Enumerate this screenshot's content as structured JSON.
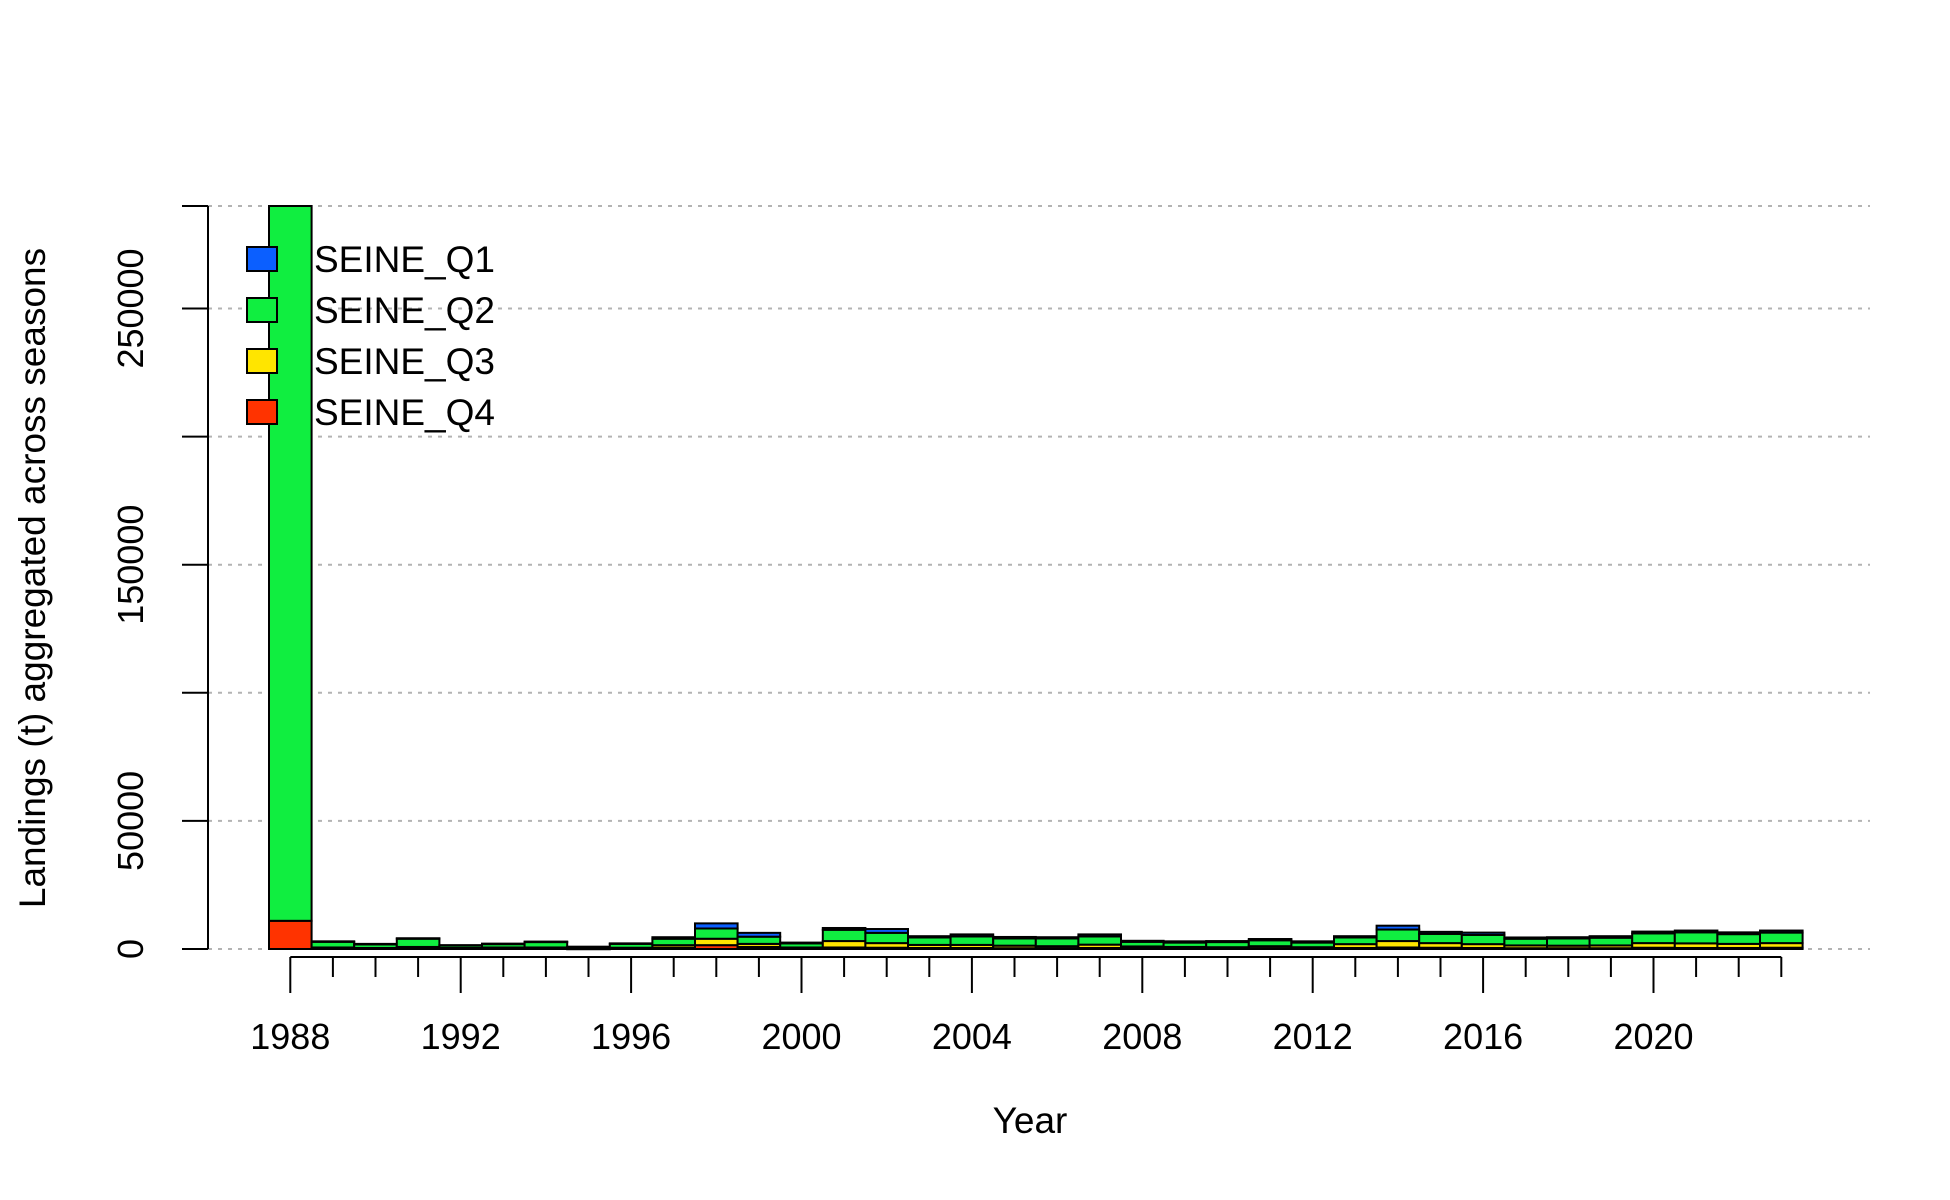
{
  "chart_data": {
    "type": "bar",
    "stacked": true,
    "title": "",
    "xlabel": "Year",
    "ylabel": "Landings (t) aggregated across seasons",
    "ylim": [
      0,
      290000
    ],
    "y_ticks": [
      0,
      50000,
      150000,
      250000
    ],
    "y_tick_marks": [
      0,
      50000,
      100000,
      150000,
      200000,
      250000,
      290000
    ],
    "x_tick_labels": [
      "1988",
      "1992",
      "1996",
      "2000",
      "2004",
      "2008",
      "2012",
      "2016",
      "2020"
    ],
    "grid": "horizontal dotted",
    "legend_position": "top-left",
    "categories": [
      "1988",
      "1989",
      "1990",
      "1991",
      "1992",
      "1993",
      "1994",
      "1995",
      "1996",
      "1997",
      "1998",
      "1999",
      "2000",
      "2001",
      "2002",
      "2003",
      "2004",
      "2005",
      "2006",
      "2007",
      "2008",
      "2009",
      "2010",
      "2011",
      "2012",
      "2013",
      "2014",
      "2015",
      "2016",
      "2017",
      "2018",
      "2019",
      "2020",
      "2021",
      "2022",
      "2023"
    ],
    "series": [
      {
        "name": "SEINE_Q4",
        "color": "#FF3300",
        "values": [
          11000,
          300,
          200,
          400,
          200,
          300,
          300,
          100,
          200,
          500,
          1500,
          800,
          200,
          600,
          500,
          400,
          400,
          300,
          300,
          400,
          300,
          200,
          200,
          300,
          200,
          400,
          600,
          500,
          400,
          300,
          300,
          300,
          500,
          400,
          400,
          500
        ]
      },
      {
        "name": "SEINE_Q3",
        "color": "#FFE500",
        "values": [
          0,
          300,
          200,
          400,
          200,
          300,
          300,
          100,
          300,
          1000,
          2500,
          1200,
          400,
          2500,
          1800,
          1200,
          1200,
          1000,
          800,
          1300,
          700,
          600,
          500,
          800,
          500,
          1500,
          2500,
          1800,
          1500,
          1100,
          1000,
          1100,
          1800,
          1800,
          1600,
          1800
        ]
      },
      {
        "name": "SEINE_Q2",
        "color": "#10EE40",
        "values": [
          279000,
          2200,
          1400,
          3200,
          1000,
          1300,
          2100,
          600,
          1500,
          2500,
          4000,
          2800,
          1600,
          4400,
          4000,
          2900,
          3300,
          2800,
          3000,
          3200,
          1800,
          1700,
          2000,
          2300,
          1800,
          2600,
          4500,
          3600,
          3600,
          2600,
          2800,
          3000,
          3800,
          4300,
          3800,
          4100
        ]
      },
      {
        "name": "SEINE_Q1",
        "color": "#0B5FFF",
        "values": [
          0,
          200,
          200,
          200,
          100,
          200,
          200,
          100,
          200,
          600,
          2000,
          1500,
          300,
          700,
          1500,
          500,
          800,
          600,
          500,
          800,
          400,
          500,
          400,
          500,
          500,
          500,
          1500,
          800,
          900,
          500,
          500,
          600,
          700,
          700,
          700,
          800
        ]
      }
    ],
    "legend_order": [
      "SEINE_Q1",
      "SEINE_Q2",
      "SEINE_Q3",
      "SEINE_Q4"
    ]
  }
}
